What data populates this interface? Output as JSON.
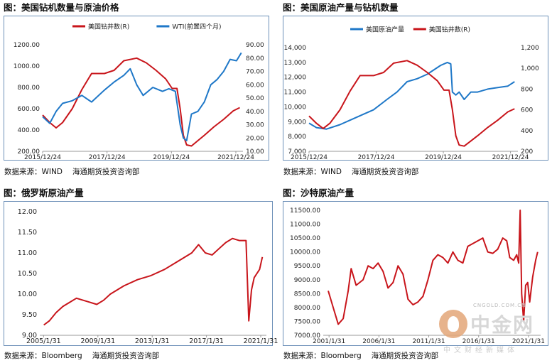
{
  "charts": [
    {
      "title": "图：美国钻机数量与原油价格",
      "source": "数据来源：WIND",
      "dept": "海通期货投资咨询部",
      "chart_data": {
        "type": "line",
        "title": "美国钻机数量与原油价格",
        "x_ticks": [
          "2015/12/24",
          "2017/12/24",
          "2019/12/24",
          "2021/12/24"
        ],
        "x_range": [
          2015.98,
          2022.2
        ],
        "y_left": {
          "ylim": [
            200,
            1200
          ],
          "ticks": [
            "200.00",
            "400.00",
            "600.00",
            "800.00",
            "1000.00",
            "1200.00"
          ]
        },
        "y_right": {
          "ylim": [
            10,
            90
          ],
          "ticks": [
            "10.00",
            "20.00",
            "30.00",
            "40.00",
            "50.00",
            "60.00",
            "70.00",
            "80.00",
            "90.00"
          ]
        },
        "legend": "top-center",
        "series": [
          {
            "name": "美国钻井数(R)",
            "color": "#c8151b",
            "axis": "left",
            "x": [
              2015.98,
              2016.2,
              2016.4,
              2016.6,
              2016.9,
              2017.2,
              2017.5,
              2017.9,
              2018.2,
              2018.5,
              2018.9,
              2019.2,
              2019.5,
              2019.8,
              2020.0,
              2020.15,
              2020.25,
              2020.35,
              2020.45,
              2020.6,
              2020.8,
              2021.0,
              2021.3,
              2021.6,
              2021.9,
              2022.1
            ],
            "y": [
              540,
              470,
              420,
              470,
              600,
              780,
              930,
              930,
              960,
              1050,
              1075,
              1030,
              960,
              880,
              790,
              790,
              600,
              350,
              260,
              250,
              300,
              350,
              430,
              500,
              580,
              610
            ]
          },
          {
            "name": "WTI(前置四个月)",
            "color": "#1f78c8",
            "axis": "right",
            "x": [
              2015.98,
              2016.2,
              2016.4,
              2016.6,
              2016.9,
              2017.2,
              2017.5,
              2017.9,
              2018.2,
              2018.5,
              2018.7,
              2018.9,
              2019.1,
              2019.4,
              2019.7,
              2019.9,
              2020.1,
              2020.25,
              2020.35,
              2020.45,
              2020.6,
              2020.8,
              2021.0,
              2021.2,
              2021.4,
              2021.6,
              2021.8,
              2022.0,
              2022.15
            ],
            "y": [
              36,
              31,
              40,
              46,
              48,
              52,
              47,
              56,
              62,
              67,
              72,
              60,
              52,
              58,
              55,
              57,
              55,
              30,
              20,
              18,
              38,
              40,
              47,
              60,
              64,
              70,
              79,
              78,
              84
            ]
          }
        ]
      }
    },
    {
      "title": "图：美国原油产量与钻机数量",
      "source": "数据来源：WIND",
      "dept": "海通期货投资咨询部",
      "chart_data": {
        "type": "line",
        "title": "美国原油产量与钻机数量",
        "x_ticks": [
          "2015/12/24",
          "2017/12/24",
          "2019/12/24",
          "2021/12/24"
        ],
        "x_range": [
          2015.98,
          2022.2
        ],
        "y_left": {
          "ylim": [
            7000,
            14000
          ],
          "ticks": [
            "7,000",
            "8,000",
            "9,000",
            "10,000",
            "11,000",
            "12,000",
            "13,000",
            "14,000"
          ]
        },
        "y_right": {
          "ylim": [
            200,
            1200
          ],
          "ticks": [
            "200",
            "400",
            "600",
            "800",
            "1,000",
            "1,200"
          ]
        },
        "legend": "top-left",
        "series": [
          {
            "name": "美国原油产量",
            "color": "#1f78c8",
            "axis": "left",
            "x": [
              2015.98,
              2016.2,
              2016.5,
              2016.9,
              2017.2,
              2017.5,
              2017.9,
              2018.3,
              2018.6,
              2018.9,
              2019.2,
              2019.5,
              2019.9,
              2020.1,
              2020.2,
              2020.25,
              2020.35,
              2020.45,
              2020.6,
              2020.8,
              2021.0,
              2021.3,
              2021.6,
              2021.9,
              2022.1
            ],
            "y": [
              8900,
              8600,
              8500,
              8800,
              9100,
              9400,
              9800,
              10500,
              11000,
              11700,
              11900,
              12200,
              12800,
              13000,
              12900,
              11000,
              10800,
              11000,
              10500,
              11000,
              11000,
              11200,
              11300,
              11400,
              11700
            ]
          },
          {
            "name": "美国钻井数(R)",
            "color": "#c8151b",
            "axis": "right",
            "x": [
              2015.98,
              2016.2,
              2016.4,
              2016.6,
              2016.9,
              2017.2,
              2017.5,
              2017.9,
              2018.2,
              2018.5,
              2018.9,
              2019.2,
              2019.5,
              2019.8,
              2020.0,
              2020.15,
              2020.25,
              2020.35,
              2020.45,
              2020.6,
              2020.8,
              2021.0,
              2021.3,
              2021.6,
              2021.9,
              2022.1
            ],
            "y": [
              540,
              470,
              420,
              470,
              600,
              780,
              930,
              930,
              960,
              1050,
              1075,
              1030,
              960,
              880,
              790,
              790,
              600,
              350,
              260,
              250,
              300,
              350,
              430,
              500,
              580,
              610
            ]
          }
        ]
      }
    },
    {
      "title": "图：俄罗斯原油产量",
      "source": "数据来源：Bloomberg",
      "dept": "海通期货投资咨询部",
      "chart_data": {
        "type": "line",
        "title": "俄罗斯原油产量",
        "x_ticks": [
          "2005/1/31",
          "2009/1/31",
          "2013/1/31",
          "2017/1/31",
          "2021/1/31"
        ],
        "x_range": [
          2004.8,
          2021.5
        ],
        "y_left": {
          "ylim": [
            9.0,
            12.0
          ],
          "ticks": [
            "9.00",
            "9.50",
            "10.00",
            "10.50",
            "11.00",
            "11.50",
            "12.00"
          ]
        },
        "legend": "none",
        "series": [
          {
            "name": "",
            "color": "#c8151b",
            "axis": "left",
            "x": [
              2005.1,
              2005.5,
              2006.0,
              2006.5,
              2007.0,
              2007.5,
              2008.0,
              2008.5,
              2009.0,
              2009.5,
              2010.0,
              2011.0,
              2012.0,
              2013.0,
              2014.0,
              2015.0,
              2016.0,
              2016.5,
              2017.0,
              2017.5,
              2018.0,
              2018.5,
              2019.0,
              2019.5,
              2020.0,
              2020.2,
              2020.4,
              2020.6,
              2020.8,
              2021.0,
              2021.2
            ],
            "y": [
              9.25,
              9.35,
              9.55,
              9.7,
              9.8,
              9.9,
              9.85,
              9.8,
              9.75,
              9.85,
              10.0,
              10.2,
              10.35,
              10.45,
              10.6,
              10.8,
              11.0,
              11.2,
              11.0,
              10.95,
              11.1,
              11.25,
              11.35,
              11.3,
              11.3,
              9.35,
              10.1,
              10.4,
              10.5,
              10.6,
              10.9
            ]
          }
        ]
      }
    },
    {
      "title": "图：沙特原油产量",
      "source": "数据来源：Bloomberg",
      "dept": "海通期货投资咨询部",
      "chart_data": {
        "type": "line",
        "title": "沙特原油产量",
        "x_ticks": [
          "2001/1/31",
          "2006/1/31",
          "2011/1/31",
          "2016/1/31",
          "2021/1/31"
        ],
        "x_range": [
          2000.5,
          2022.3
        ],
        "y_left": {
          "ylim": [
            7000,
            11500
          ],
          "ticks": [
            "7000.00",
            "7500.00",
            "8000.00",
            "8500.00",
            "9000.00",
            "9500.00",
            "10000.00",
            "10500.00",
            "11000.00",
            "11500.00"
          ]
        },
        "legend": "none",
        "series": [
          {
            "name": "",
            "color": "#c8151b",
            "axis": "left",
            "x": [
              2001.0,
              2001.5,
              2002.0,
              2002.5,
              2003.0,
              2003.3,
              2003.8,
              2004.5,
              2005.0,
              2005.5,
              2006.0,
              2006.5,
              2007.0,
              2007.5,
              2008.0,
              2008.5,
              2009.0,
              2009.5,
              2010.0,
              2010.5,
              2011.0,
              2011.5,
              2012.0,
              2012.5,
              2013.0,
              2013.5,
              2014.0,
              2014.5,
              2015.0,
              2015.5,
              2016.0,
              2016.5,
              2017.0,
              2017.5,
              2018.0,
              2018.5,
              2018.9,
              2019.2,
              2019.6,
              2019.9,
              2020.1,
              2020.25,
              2020.4,
              2020.6,
              2020.8,
              2021.0,
              2021.2,
              2021.5,
              2021.8,
              2022.0
            ],
            "y": [
              8600,
              8000,
              7400,
              7600,
              8600,
              9400,
              8800,
              9000,
              9500,
              9400,
              9600,
              9300,
              8700,
              8900,
              9500,
              9200,
              8300,
              8100,
              8200,
              8400,
              9000,
              9700,
              9900,
              9800,
              9600,
              10000,
              9700,
              9600,
              10200,
              10300,
              10400,
              10500,
              10000,
              9950,
              10100,
              10500,
              10400,
              9800,
              9700,
              9900,
              9600,
              11500,
              8500,
              7500,
              8800,
              8900,
              8200,
              9100,
              9700,
              10000
            ]
          }
        ]
      }
    }
  ]
}
